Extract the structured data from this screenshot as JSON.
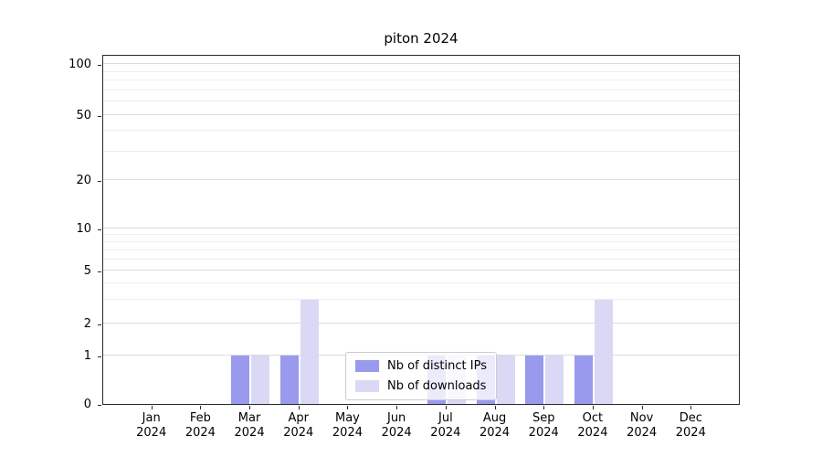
{
  "chart_data": {
    "type": "bar",
    "title": "piton 2024",
    "categories": [
      "Jan 2024",
      "Feb 2024",
      "Mar 2024",
      "Apr 2024",
      "May 2024",
      "Jun 2024",
      "Jul 2024",
      "Aug 2024",
      "Sep 2024",
      "Oct 2024",
      "Nov 2024",
      "Dec 2024"
    ],
    "series": [
      {
        "name": "Nb of distinct IPs",
        "color": "#9999ee",
        "values": [
          0,
          0,
          1,
          1,
          0,
          0,
          1,
          1,
          1,
          1,
          0,
          0
        ]
      },
      {
        "name": "Nb of downloads",
        "color": "#d9d9f6",
        "values": [
          0,
          0,
          1,
          3,
          0,
          0,
          1,
          1,
          1,
          3,
          0,
          0
        ]
      }
    ],
    "yticks": [
      0,
      1,
      2,
      5,
      10,
      20,
      50,
      100
    ],
    "yscale": "symlog",
    "ylim": [
      0,
      100
    ],
    "xlabel": "",
    "ylabel": "",
    "grid": true,
    "legend_position": "lower center"
  }
}
